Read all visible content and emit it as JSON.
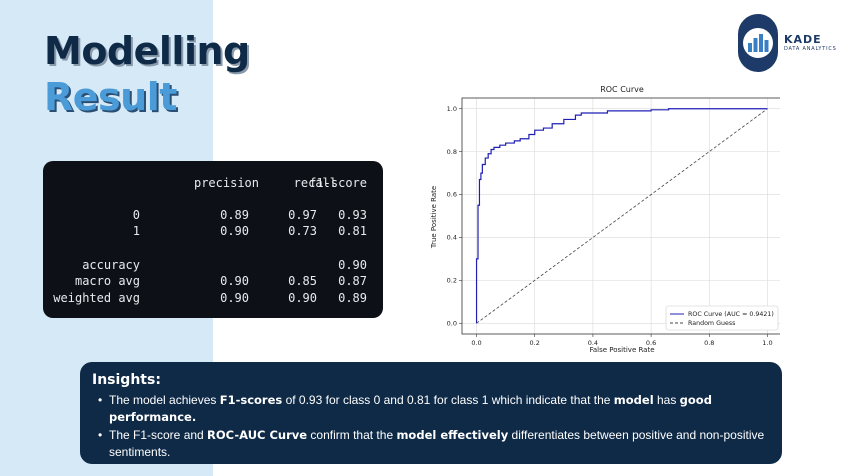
{
  "slide": {
    "title_line1": "Modelling",
    "title_line2": "Result"
  },
  "logo": {
    "name": "KADE",
    "subtitle": "DATA ANALYTICS",
    "icon": "bar-chart-icon",
    "brand_color": "#1d3a68"
  },
  "report": {
    "headers": [
      "precision",
      "recall",
      "f1-score"
    ],
    "rows": [
      {
        "label": "0",
        "precision": "0.89",
        "recall": "0.97",
        "f1": "0.93"
      },
      {
        "label": "1",
        "precision": "0.90",
        "recall": "0.73",
        "f1": "0.81"
      },
      {
        "label": "accuracy",
        "precision": "",
        "recall": "",
        "f1": "0.90"
      },
      {
        "label": "macro avg",
        "precision": "0.90",
        "recall": "0.85",
        "f1": "0.87"
      },
      {
        "label": "weighted avg",
        "precision": "0.90",
        "recall": "0.90",
        "f1": "0.89"
      }
    ]
  },
  "chart_data": {
    "type": "line",
    "title": "ROC Curve",
    "xlabel": "False Positive Rate",
    "ylabel": "True Positive Rate",
    "xlim": [
      -0.05,
      1.05
    ],
    "ylim": [
      -0.05,
      1.05
    ],
    "xticks": [
      "0.0",
      "0.2",
      "0.4",
      "0.6",
      "0.8",
      "1.0"
    ],
    "yticks": [
      "0.0",
      "0.2",
      "0.4",
      "0.6",
      "0.8",
      "1.0"
    ],
    "grid": true,
    "legend_position": "bottom-right",
    "series": [
      {
        "name": "ROC Curve (AUC = 0.9421)",
        "color": "#1f1fb4",
        "style": "solid",
        "x": [
          0.0,
          0.0,
          0.005,
          0.005,
          0.01,
          0.01,
          0.015,
          0.015,
          0.02,
          0.02,
          0.03,
          0.03,
          0.04,
          0.04,
          0.05,
          0.05,
          0.06,
          0.06,
          0.08,
          0.08,
          0.1,
          0.1,
          0.13,
          0.13,
          0.15,
          0.15,
          0.18,
          0.18,
          0.2,
          0.2,
          0.23,
          0.23,
          0.26,
          0.26,
          0.3,
          0.3,
          0.34,
          0.34,
          0.36,
          0.36,
          0.45,
          0.45,
          0.6,
          0.6,
          0.66,
          0.66,
          0.9,
          0.9,
          1.0
        ],
        "y": [
          0.0,
          0.3,
          0.3,
          0.55,
          0.55,
          0.67,
          0.67,
          0.7,
          0.7,
          0.74,
          0.74,
          0.77,
          0.77,
          0.79,
          0.79,
          0.81,
          0.81,
          0.82,
          0.82,
          0.83,
          0.83,
          0.84,
          0.84,
          0.85,
          0.85,
          0.86,
          0.86,
          0.88,
          0.88,
          0.9,
          0.9,
          0.91,
          0.91,
          0.93,
          0.93,
          0.95,
          0.95,
          0.97,
          0.97,
          0.98,
          0.98,
          0.99,
          0.99,
          0.995,
          0.995,
          1.0,
          1.0,
          1.0,
          1.0
        ]
      },
      {
        "name": "Random Guess",
        "color": "#444444",
        "style": "dashed",
        "x": [
          0.0,
          1.0
        ],
        "y": [
          0.0,
          1.0
        ]
      }
    ]
  },
  "insights": {
    "heading": "Insights:",
    "bullet1": {
      "t1": "The model achieves ",
      "b1": "F1-scores",
      "t2": " of 0.93 for class 0 and 0.81 for class 1 which indicate that the ",
      "b2": "model",
      "t3": " has ",
      "b3": "good performance."
    },
    "bullet2": {
      "t1": "The F1-score and ",
      "b1": "ROC-AUC Curve",
      "t2": " confirm that the ",
      "b2": "model effectively",
      "t3": " differentiates between positive and non-positive sentiments."
    }
  }
}
